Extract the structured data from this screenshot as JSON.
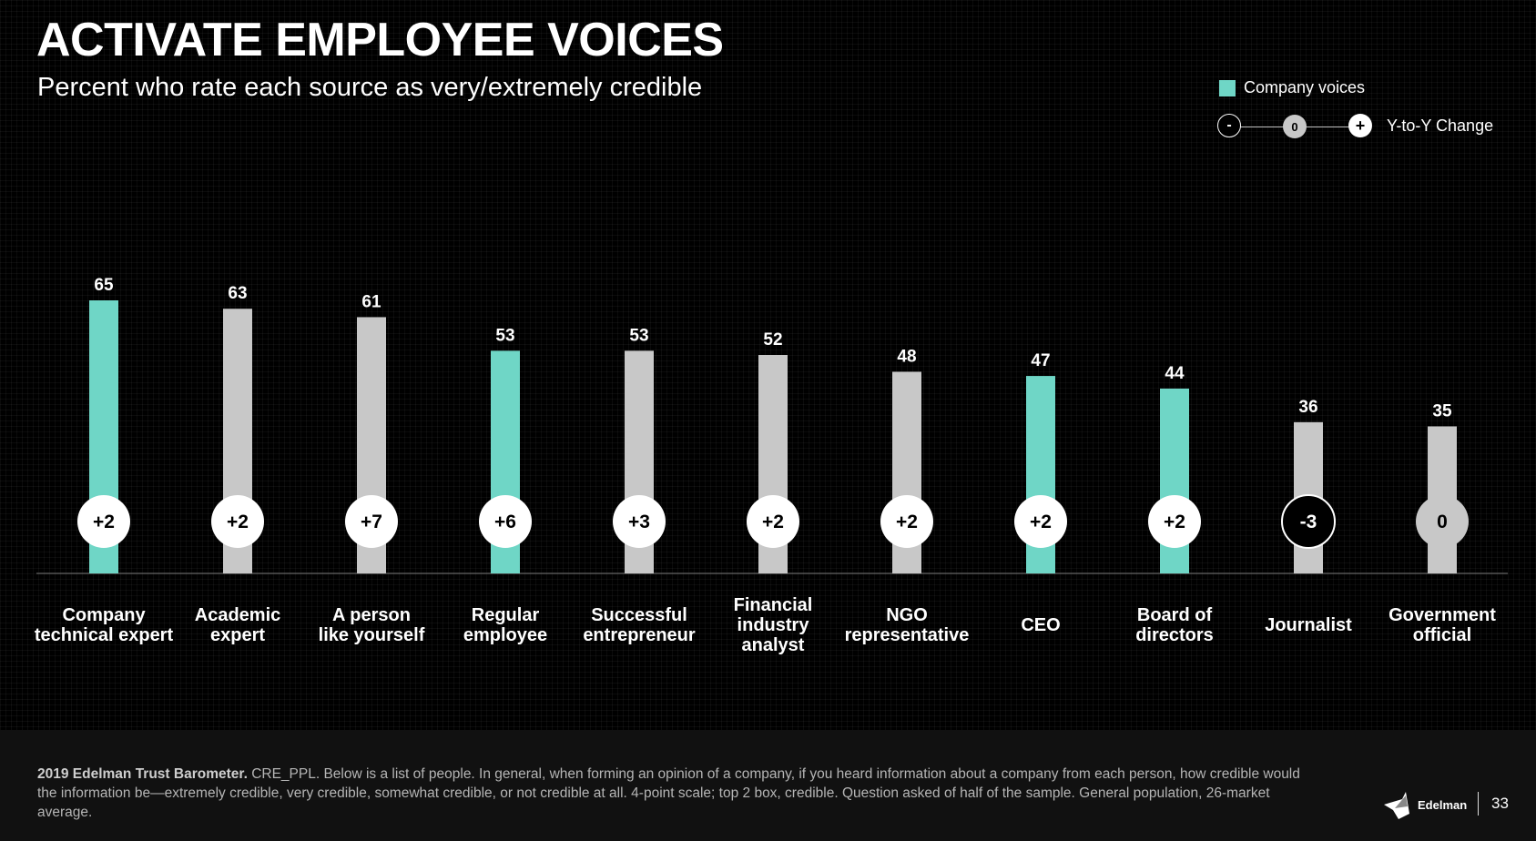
{
  "header": {
    "title": "ACTIVATE EMPLOYEE VOICES",
    "subtitle": "Percent who rate each source as very/extremely credible"
  },
  "legend": {
    "company_label": "Company voices",
    "yoy_label": "Y-to-Y Change",
    "minus": "-",
    "zero": "0",
    "plus": "+"
  },
  "colors": {
    "company": "#6fd6c6",
    "other": "#c8c8c8",
    "background": "#000000"
  },
  "chart_data": {
    "type": "bar",
    "categories": [
      [
        "Company",
        "technical expert"
      ],
      [
        "Academic",
        "expert"
      ],
      [
        "A person",
        "like yourself"
      ],
      [
        "Regular",
        "employee"
      ],
      [
        "Successful",
        "entrepreneur"
      ],
      [
        "Financial",
        "industry",
        "analyst"
      ],
      [
        "NGO",
        "representative"
      ],
      [
        "CEO"
      ],
      [
        "Board of",
        "directors"
      ],
      [
        "Journalist"
      ],
      [
        "Government",
        "official"
      ]
    ],
    "values": [
      65,
      63,
      61,
      53,
      53,
      52,
      48,
      47,
      44,
      36,
      35
    ],
    "company_voice": [
      true,
      false,
      false,
      true,
      false,
      false,
      false,
      true,
      true,
      false,
      false
    ],
    "yoy_change": [
      "+2",
      "+2",
      "+7",
      "+6",
      "+3",
      "+2",
      "+2",
      "+2",
      "+2",
      "-3",
      "0"
    ],
    "ylim": [
      0,
      100
    ]
  },
  "footer": {
    "source_bold": "2019 Edelman Trust Barometer.",
    "source_text": "CRE_PPL. Below is a list of people. In general, when forming an opinion of a company, if you heard information about a company from each person, how credible would the information be—extremely credible, very credible, somewhat credible, or not credible at all. 4-point scale; top 2 box, credible. Question asked of half of the sample. General population, 26-market average.",
    "brand": "Edelman",
    "page_number": "33"
  }
}
